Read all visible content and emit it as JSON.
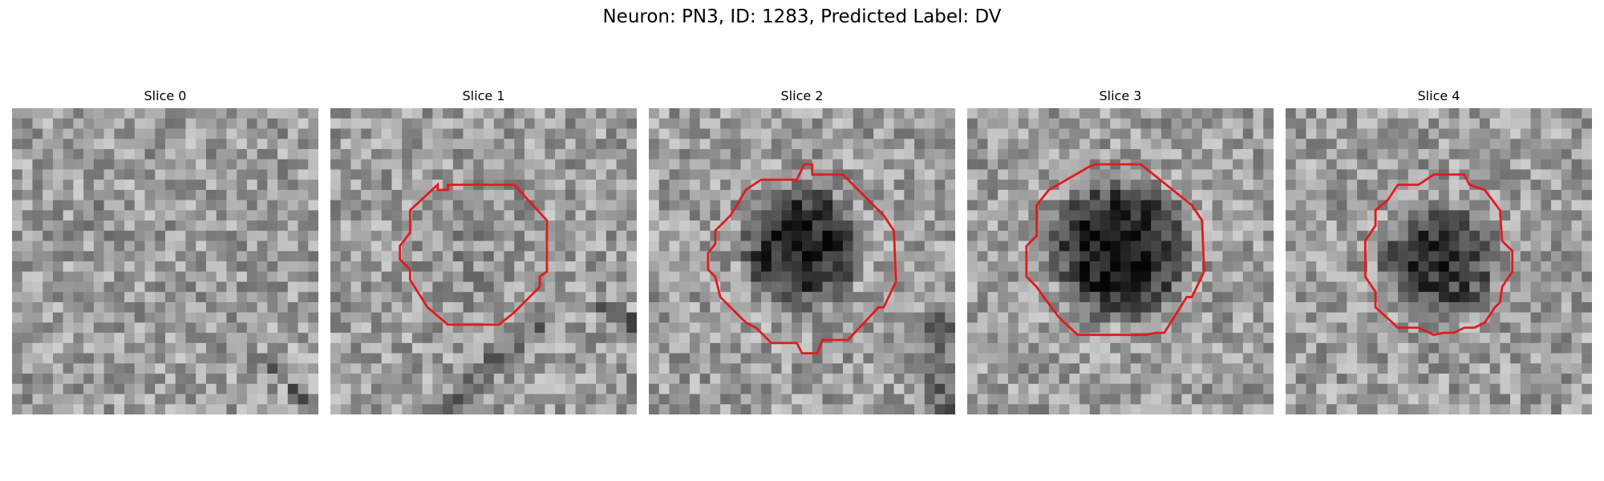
{
  "figure": {
    "title": "Neuron: PN3, ID: 1283, Predicted Label: DV"
  },
  "panels": [
    {
      "title": "Slice 0",
      "has_contour": false,
      "cell_darkness": 0.06,
      "seed": 11
    },
    {
      "title": "Slice 1",
      "has_contour": true,
      "cell_darkness": 0.05,
      "seed": 23
    },
    {
      "title": "Slice 2",
      "has_contour": true,
      "cell_darkness": 0.5,
      "seed": 37
    },
    {
      "title": "Slice 3",
      "has_contour": true,
      "cell_darkness": 0.55,
      "seed": 41
    },
    {
      "title": "Slice 4",
      "has_contour": true,
      "cell_darkness": 0.4,
      "seed": 53
    }
  ],
  "colors": {
    "contour": "#e31a1c",
    "background": "#ffffff"
  }
}
